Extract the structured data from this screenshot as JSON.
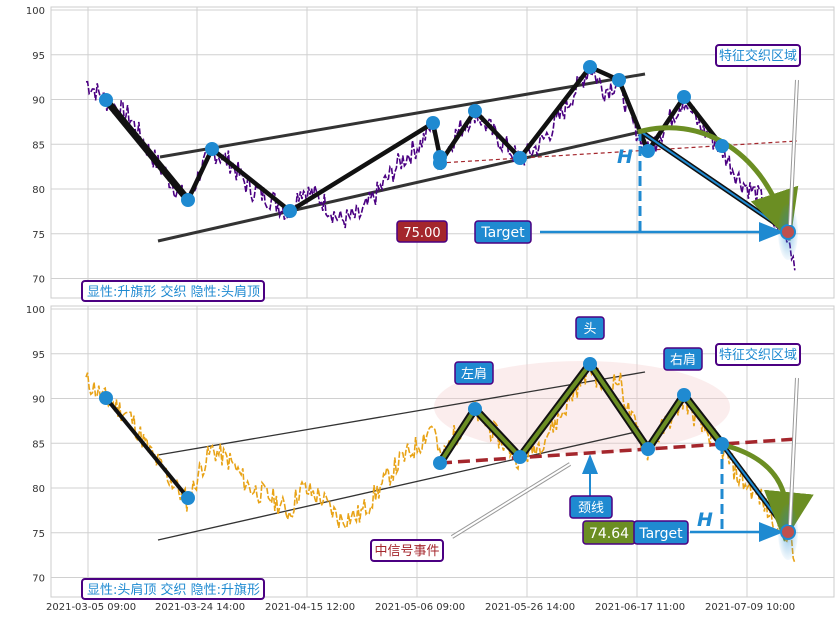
{
  "chart_data": [
    {
      "type": "line",
      "panel": "top",
      "ylim": [
        67.5,
        100
      ],
      "yticks": [
        "100",
        "95",
        "90",
        "85",
        "80",
        "75",
        "70"
      ],
      "grid": true,
      "series": [
        {
          "values_desc": "price line",
          "color": "#4b0082"
        }
      ],
      "pivots": [
        {
          "x": 106,
          "y": 89.9
        },
        {
          "x": 188,
          "y": 78.4
        },
        {
          "x": 212,
          "y": 84.3
        },
        {
          "x": 290,
          "y": 77.2
        },
        {
          "x": 433,
          "y": 87.3
        },
        {
          "x": 440,
          "y": 83.3
        },
        {
          "x": 440,
          "y": 82.5
        },
        {
          "x": 475,
          "y": 88.6
        },
        {
          "x": 520,
          "y": 83.2
        },
        {
          "x": 590,
          "y": 93.6
        },
        {
          "x": 619,
          "y": 92.2
        },
        {
          "x": 648,
          "y": 84.1
        },
        {
          "x": 684,
          "y": 90.1
        },
        {
          "x": 722,
          "y": 84.4
        },
        {
          "x": 788,
          "y": 75.0
        }
      ],
      "annotations": {
        "top_left_box": "显性:升旗形 交织 隐性:头肩顶",
        "zone_label": "特征交织区域",
        "price_tag": "75.00",
        "target": "Target",
        "h": "H"
      }
    },
    {
      "type": "line",
      "panel": "bottom",
      "ylim": [
        67.5,
        100
      ],
      "yticks": [
        "100",
        "95",
        "90",
        "85",
        "80",
        "75",
        "70"
      ],
      "xticks": [
        "2021-03-05 09:00",
        "2021-03-24 14:00",
        "2021-04-15 12:00",
        "2021-05-06 09:00",
        "2021-05-26 14:00",
        "2021-06-17 11:00",
        "2021-07-09 10:00"
      ],
      "grid": true,
      "series": [
        {
          "values_desc": "price line",
          "color": "#e8a317"
        }
      ],
      "annotations": {
        "bottom_left_box": "显性:头肩顶 交织 隐性:升旗形",
        "zone_label": "特征交织区域",
        "left_shoulder": "左肩",
        "head": "头",
        "right_shoulder": "右肩",
        "neckline": "颈线",
        "mid_signal": "中信号事件",
        "price_tag": "74.64",
        "target": "Target",
        "h": "H"
      }
    }
  ],
  "colors": {
    "grid": "#cccccc",
    "pivot": "#1f8ad1",
    "price_tag_top": "#a4262c",
    "price_tag_bottom": "#6b8e23",
    "target_box": "#1f8ad1",
    "label_border": "#4b0082",
    "h_color": "#1f8ad1",
    "neckline": "#a4262c",
    "arrow_green": "#6b8e23"
  }
}
